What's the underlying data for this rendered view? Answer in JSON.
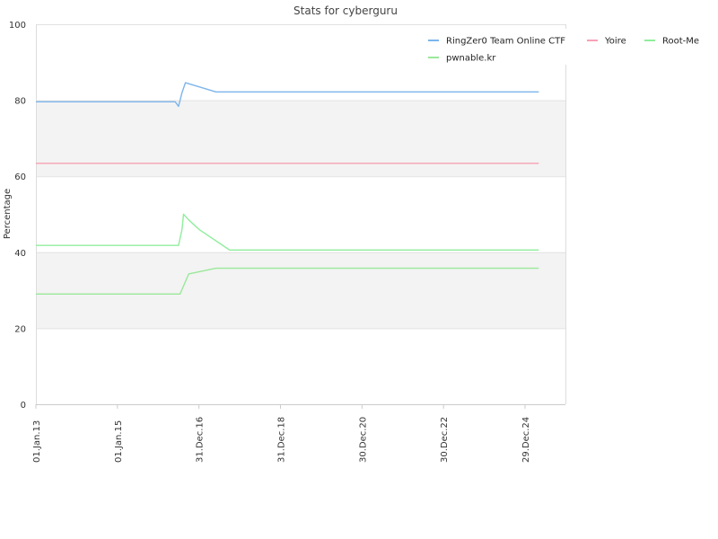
{
  "chart_data": {
    "type": "line",
    "title": "Stats for cyberguru",
    "ylabel": "Percentage",
    "xlabel": "",
    "ylim": [
      0,
      100
    ],
    "y_ticks": [
      "0",
      "20",
      "40",
      "60",
      "80",
      "100"
    ],
    "x_ticks": [
      "01.Jan.13",
      "01.Jan.15",
      "31.Dec.16",
      "31.Dec.18",
      "30.Dec.20",
      "30.Dec.22",
      "29.Dec.24"
    ],
    "x_tick_dates": [
      "2013-01-01",
      "2015-01-01",
      "2016-12-31",
      "2018-12-31",
      "2020-12-30",
      "2022-12-30",
      "2024-12-29"
    ],
    "grid": true,
    "legend_position": "top-right",
    "series": [
      {
        "name": "RingZer0 Team Online CTF",
        "color": "#7cb5ec",
        "points": [
          [
            "2013-01-01",
            79.6
          ],
          [
            "2016-06-01",
            79.6
          ],
          [
            "2016-07-01",
            78.4
          ],
          [
            "2016-08-01",
            82.0
          ],
          [
            "2016-09-01",
            84.6
          ],
          [
            "2017-06-01",
            82.2
          ],
          [
            "2025-05-01",
            82.2
          ]
        ]
      },
      {
        "name": "Yoire",
        "color": "#f7a1b5",
        "points": [
          [
            "2013-01-01",
            63.4
          ],
          [
            "2025-05-01",
            63.4
          ]
        ]
      },
      {
        "name": "Root-Me",
        "color": "#90ed9d",
        "points": [
          [
            "2013-01-01",
            41.8
          ],
          [
            "2016-07-01",
            41.8
          ],
          [
            "2016-08-01",
            46.0
          ],
          [
            "2016-08-15",
            50.0
          ],
          [
            "2016-10-01",
            48.5
          ],
          [
            "2017-01-01",
            46.0
          ],
          [
            "2017-10-01",
            40.6
          ],
          [
            "2025-05-01",
            40.6
          ]
        ]
      },
      {
        "name": "pwnable.kr",
        "color": "#9ae89a",
        "points": [
          [
            "2013-01-01",
            29.0
          ],
          [
            "2016-07-15",
            29.0
          ],
          [
            "2016-10-01",
            34.3
          ],
          [
            "2017-06-01",
            35.8
          ],
          [
            "2025-05-01",
            35.8
          ]
        ]
      }
    ]
  }
}
